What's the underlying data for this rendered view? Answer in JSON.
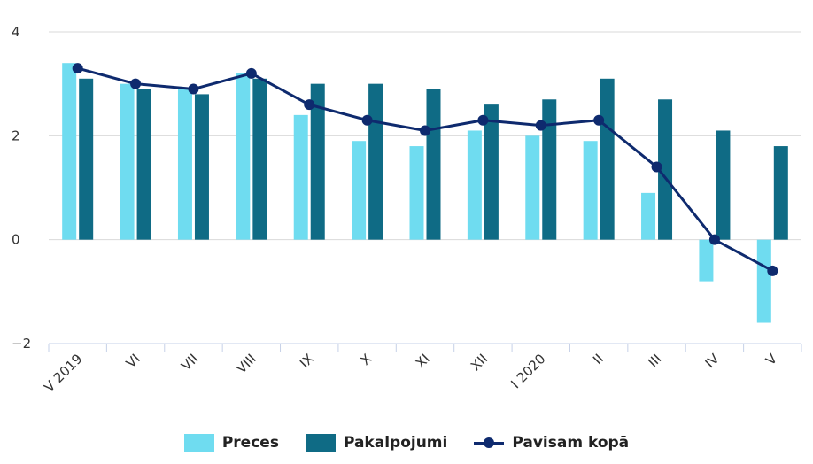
{
  "chart_data": {
    "type": "bar",
    "categories": [
      "V 2019",
      "VI",
      "VII",
      "VIII",
      "IX",
      "X",
      "XI",
      "XII",
      "I 2020",
      "II",
      "III",
      "IV",
      "V"
    ],
    "series": [
      {
        "name": "Preces",
        "kind": "bar",
        "color": "#6fdcf0",
        "values": [
          3.4,
          3.0,
          2.9,
          3.2,
          2.4,
          1.9,
          1.8,
          2.1,
          2.0,
          1.9,
          0.9,
          -0.8,
          -1.6
        ]
      },
      {
        "name": "Pakalpojumi",
        "kind": "bar",
        "color": "#0f6b85",
        "values": [
          3.1,
          2.9,
          2.8,
          3.1,
          3.0,
          3.0,
          2.9,
          2.6,
          2.7,
          3.1,
          2.7,
          2.1,
          1.8
        ]
      },
      {
        "name": "Pavisam kopā",
        "kind": "line",
        "color": "#0e2a6e",
        "values": [
          3.3,
          3.0,
          2.9,
          3.2,
          2.6,
          2.3,
          2.1,
          2.3,
          2.2,
          2.3,
          1.4,
          0.0,
          -0.6
        ]
      }
    ],
    "yticks": [
      4,
      2,
      0,
      -2
    ],
    "ylim": [
      -2,
      4
    ],
    "grid": true,
    "legend_position": "bottom-center"
  },
  "colors": {
    "grid": "#d9d9d9",
    "axis": "#c6d1e8",
    "tick_text": "#333333"
  }
}
